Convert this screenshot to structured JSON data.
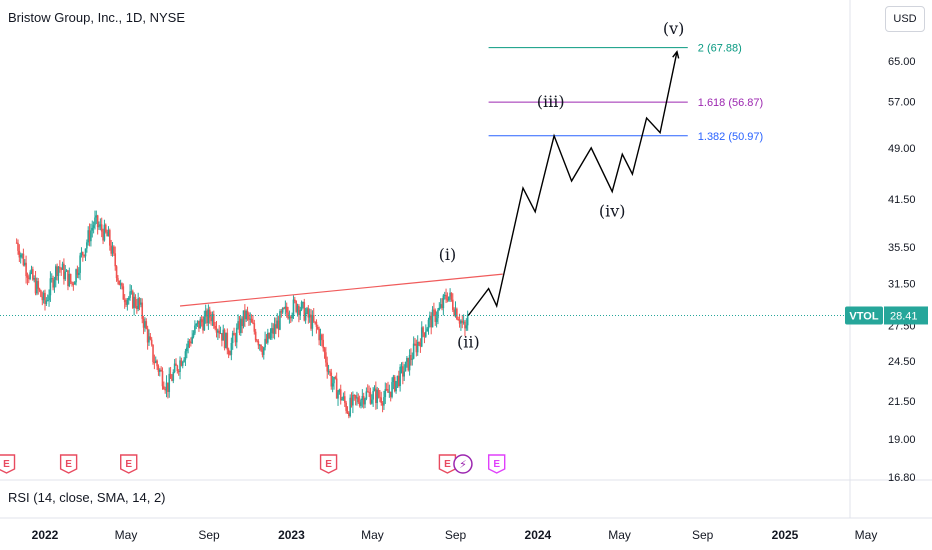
{
  "header": {
    "title": "Bristow Group, Inc., 1D, NYSE",
    "currency_button": "USD"
  },
  "price_tag": {
    "ticker": "VTOL",
    "price": "28.41"
  },
  "indicator": {
    "label": "RSI (14, close, SMA, 14, 2)"
  },
  "colors": {
    "up": "#26a69a",
    "down": "#ef5350",
    "trendline": "#f05b5b",
    "fib_2": "#089981",
    "fib_1618": "#9c27b0",
    "fib_1382": "#2962ff",
    "earnings": "#e84a5f",
    "dividend": "#9c27b0",
    "future_event": "#e040fb",
    "price_tag_bg": "#26a69a"
  },
  "chart_data": {
    "type": "candlestick",
    "y_scale": "log",
    "ylim": [
      16.8,
      80
    ],
    "y_ticks": [
      "65.00",
      "57.00",
      "49.00",
      "41.50",
      "35.50",
      "31.50",
      "27.50",
      "24.50",
      "21.50",
      "19.00",
      "16.80"
    ],
    "x_ticks": [
      "2022",
      "May",
      "Sep",
      "2023",
      "May",
      "Sep",
      "2024",
      "May",
      "Sep",
      "2025",
      "May"
    ],
    "x_range": [
      "2021-11",
      "2025-06"
    ],
    "last_price": 28.41,
    "price_path": [
      [
        "2021-11-20",
        36.0
      ],
      [
        "2021-12-05",
        33.0
      ],
      [
        "2022-01-01",
        29.5
      ],
      [
        "2022-01-20",
        33.5
      ],
      [
        "2022-02-10",
        31.5
      ],
      [
        "2022-03-15",
        38.5
      ],
      [
        "2022-04-05",
        36.5
      ],
      [
        "2022-04-25",
        30.5
      ],
      [
        "2022-05-20",
        29.5
      ],
      [
        "2022-06-10",
        24.8
      ],
      [
        "2022-07-01",
        22.5
      ],
      [
        "2022-07-20",
        24.5
      ],
      [
        "2022-08-15",
        27.5
      ],
      [
        "2022-09-05",
        28.5
      ],
      [
        "2022-10-01",
        25.5
      ],
      [
        "2022-10-25",
        28.5
      ],
      [
        "2022-11-20",
        25.5
      ],
      [
        "2022-12-20",
        28.5
      ],
      [
        "2023-01-10",
        29.5
      ],
      [
        "2023-02-10",
        27.0
      ],
      [
        "2023-03-01",
        23.0
      ],
      [
        "2023-03-25",
        21.0
      ],
      [
        "2023-04-20",
        22.0
      ],
      [
        "2023-05-20",
        21.8
      ],
      [
        "2023-06-20",
        24.0
      ],
      [
        "2023-07-20",
        27.5
      ],
      [
        "2023-08-10",
        29.0
      ],
      [
        "2023-08-20",
        30.5
      ],
      [
        "2023-09-05",
        28.5
      ],
      [
        "2023-09-15",
        27.0
      ],
      [
        "2023-09-20",
        28.41
      ]
    ],
    "trendline": [
      [
        "2022-07-20",
        29.3
      ],
      [
        "2023-11-10",
        32.5
      ]
    ],
    "projection": [
      [
        "2023-09-20",
        28.41
      ],
      [
        "2023-10-20",
        31.0
      ],
      [
        "2023-11-01",
        29.3
      ],
      [
        "2023-12-10",
        43.0
      ],
      [
        "2023-12-28",
        39.8
      ],
      [
        "2024-01-25",
        50.97
      ],
      [
        "2024-02-20",
        44.0
      ],
      [
        "2024-03-20",
        49.0
      ],
      [
        "2024-04-20",
        42.5
      ],
      [
        "2024-05-05",
        48.0
      ],
      [
        "2024-05-20",
        45.0
      ],
      [
        "2024-06-10",
        54.0
      ],
      [
        "2024-06-30",
        51.5
      ],
      [
        "2024-07-25",
        67.0
      ]
    ],
    "wave_labels": [
      {
        "text": "(i)",
        "date": "2023-08-20",
        "price": 34.0
      },
      {
        "text": "(ii)",
        "date": "2023-09-20",
        "price": 25.6
      },
      {
        "text": "(iii)",
        "date": "2024-01-20",
        "price": 56.0
      },
      {
        "text": "(iv)",
        "date": "2024-04-20",
        "price": 39.2
      },
      {
        "text": "(v)",
        "date": "2024-07-20",
        "price": 71.0
      }
    ],
    "fib_levels": [
      {
        "label": "2 (67.88)",
        "price": 67.88,
        "start": "2023-10-20",
        "end": "2024-08-10",
        "color_key": "fib_2"
      },
      {
        "label": "1.618 (56.87)",
        "price": 56.87,
        "start": "2023-10-20",
        "end": "2024-08-10",
        "color_key": "fib_1618"
      },
      {
        "label": "1.382 (50.97)",
        "price": 50.97,
        "start": "2023-10-20",
        "end": "2024-08-10",
        "color_key": "fib_1382"
      }
    ],
    "events": [
      {
        "kind": "earnings",
        "glyph": "E",
        "date": "2021-11-05"
      },
      {
        "kind": "earnings",
        "glyph": "E",
        "date": "2022-02-05"
      },
      {
        "kind": "earnings",
        "glyph": "E",
        "date": "2022-05-05"
      },
      {
        "kind": "earnings",
        "glyph": "E",
        "date": "2023-02-25"
      },
      {
        "kind": "earnings",
        "glyph": "E",
        "date": "2023-08-20"
      },
      {
        "kind": "dividend",
        "glyph": "⚡",
        "date": "2023-09-12"
      },
      {
        "kind": "future",
        "glyph": "E",
        "date": "2023-11-01"
      }
    ]
  }
}
